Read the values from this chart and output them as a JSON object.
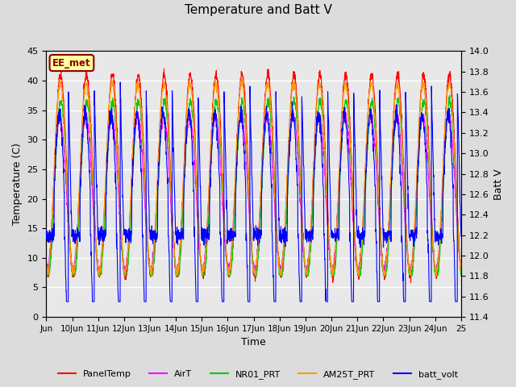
{
  "title": "Temperature and Batt V",
  "xlabel": "Time",
  "ylabel_left": "Temperature (C)",
  "ylabel_right": "Batt V",
  "annotation": "EE_met",
  "xlim": [
    0,
    16
  ],
  "ylim_left": [
    0,
    45
  ],
  "ylim_right": [
    11.4,
    14.0
  ],
  "yticks_left": [
    0,
    5,
    10,
    15,
    20,
    25,
    30,
    35,
    40,
    45
  ],
  "yticks_right": [
    11.4,
    11.6,
    11.8,
    12.0,
    12.2,
    12.4,
    12.6,
    12.8,
    13.0,
    13.2,
    13.4,
    13.6,
    13.8,
    14.0
  ],
  "xtick_positions": [
    0,
    1,
    2,
    3,
    4,
    5,
    6,
    7,
    8,
    9,
    10,
    11,
    12,
    13,
    14,
    15,
    16
  ],
  "xtick_labels": [
    "Jun",
    "10Jun",
    "11Jun",
    "12Jun",
    "13Jun",
    "14Jun",
    "15Jun",
    "16Jun",
    "17Jun",
    "18Jun",
    "19Jun",
    "20Jun",
    "21Jun",
    "22Jun",
    "23Jun",
    "24Jun",
    "25"
  ],
  "legend": [
    {
      "label": "PanelTemp",
      "color": "#FF0000"
    },
    {
      "label": "AirT",
      "color": "#FF00FF"
    },
    {
      "label": "NR01_PRT",
      "color": "#00CC00"
    },
    {
      "label": "AM25T_PRT",
      "color": "#FF9900"
    },
    {
      "label": "batt_volt",
      "color": "#0000FF"
    }
  ],
  "bg_color": "#DCDCDC",
  "plot_bg": "#E8E8E8",
  "grid_color": "#FFFFFF"
}
